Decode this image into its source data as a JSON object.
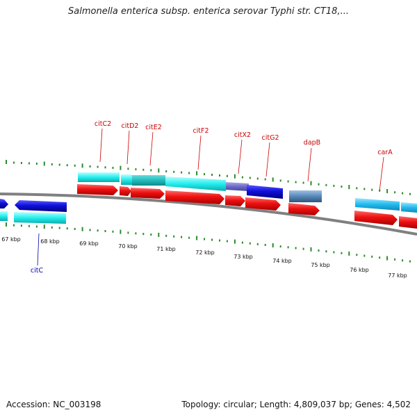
{
  "title": "Salmonella enterica subsp. enterica serovar Typhi str. CT18,...",
  "accession_text": "Accession: NC_003198",
  "summary_text": "Topology: circular; Length: 4,809,037 bp; Genes: 4,502",
  "colors": {
    "forward_gene": "#ee1111",
    "reverse_gene": "#1010dd",
    "cyan_track": "#22eeee",
    "slate_track": "#5588bb",
    "backbone": "#808080",
    "tick": "#2a8a2a",
    "label_forward": "#cc0000",
    "label_reverse": "#0000aa"
  },
  "kbp_labels": [
    "67 kbp",
    "68 kbp",
    "69 kbp",
    "70 kbp",
    "71 kbp",
    "72 kbp",
    "73 kbp",
    "74 kbp",
    "75 kbp",
    "76 kbp",
    "77 kbp"
  ],
  "gene_labels": [
    {
      "name": "citC2",
      "strand": "forward"
    },
    {
      "name": "citD2",
      "strand": "forward"
    },
    {
      "name": "citE2",
      "strand": "forward"
    },
    {
      "name": "citF2",
      "strand": "forward"
    },
    {
      "name": "citX2",
      "strand": "forward"
    },
    {
      "name": "citG2",
      "strand": "forward"
    },
    {
      "name": "dapB",
      "strand": "forward"
    },
    {
      "name": "carA",
      "strand": "forward"
    },
    {
      "name": "citC",
      "strand": "reverse"
    }
  ]
}
